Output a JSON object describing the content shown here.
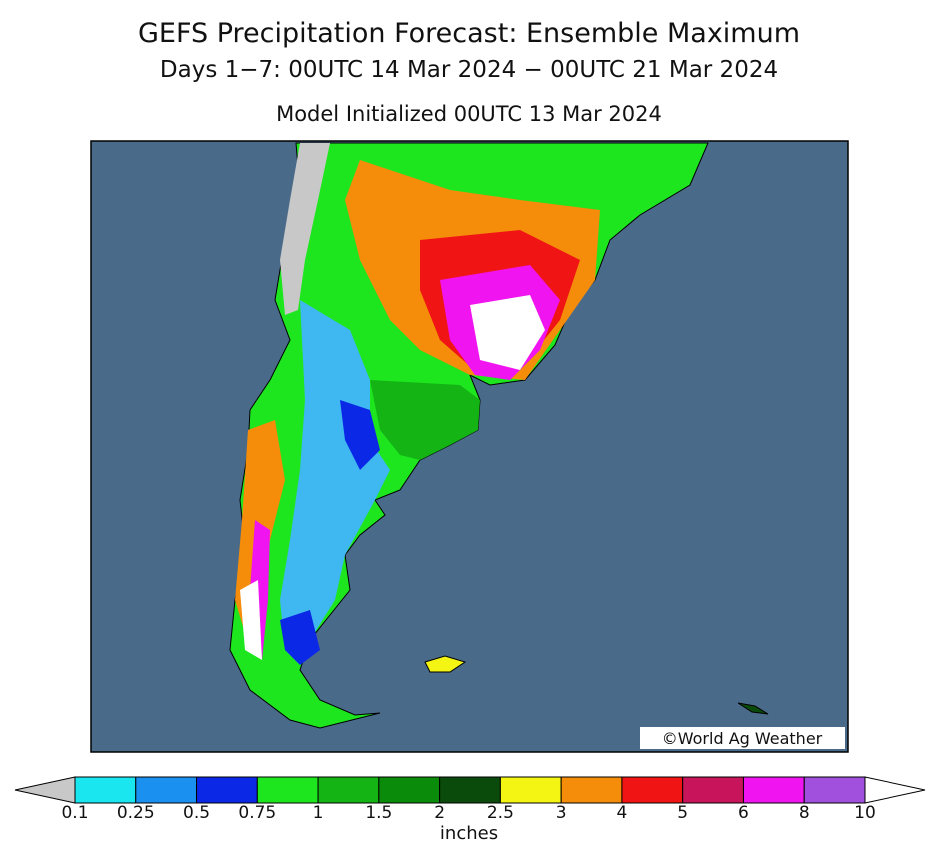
{
  "header": {
    "title": "GEFS Precipitation Forecast: Ensemble Maximum",
    "subtitle": "Days 1−7: 00UTC 14 Mar 2024 − 00UTC 21 Mar 2024",
    "init": "Model Initialized 00UTC 13 Mar 2024"
  },
  "map": {
    "credit": "©World Ag Weather"
  },
  "legend": {
    "ticks": [
      "0.1",
      "0.25",
      "0.5",
      "0.75",
      "1",
      "1.5",
      "2",
      "2.5",
      "3",
      "4",
      "5",
      "6",
      "8",
      "10"
    ],
    "colors": [
      "#19e6ef",
      "#1a90f0",
      "#0a28e6",
      "#1ee61e",
      "#14b414",
      "#0a8c0a",
      "#0a4a0a",
      "#f5f514",
      "#f58c0a",
      "#f01414",
      "#c8145a",
      "#f014f0",
      "#a050dc"
    ],
    "under_color": "#c8c8c8",
    "over_color": "#ffffff",
    "unit": "inches"
  }
}
